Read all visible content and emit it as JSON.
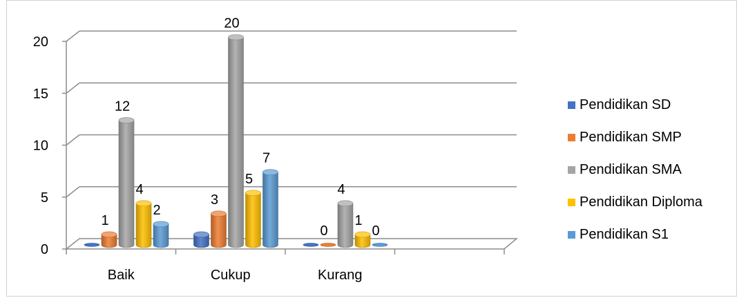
{
  "chart_data": {
    "type": "bar",
    "categories": [
      "Baik",
      "Cukup",
      "Kurang"
    ],
    "series": [
      {
        "name": "Pendidikan SD",
        "values": [
          0,
          1,
          0
        ],
        "color": "#4472C4"
      },
      {
        "name": "Pendidikan SMP",
        "values": [
          1,
          3,
          0
        ],
        "color": "#ED7D31"
      },
      {
        "name": "Pendidikan SMA",
        "values": [
          12,
          20,
          4
        ],
        "color": "#A5A5A5"
      },
      {
        "name": "Pendidikan Diploma",
        "values": [
          4,
          5,
          1
        ],
        "color": "#FFC000"
      },
      {
        "name": "Pendidikan S1",
        "values": [
          2,
          7,
          0
        ],
        "color": "#5B9BD5"
      }
    ],
    "data_labels": [
      {
        "category": "Baik",
        "series": "Pendidikan SMP",
        "text": "1"
      },
      {
        "category": "Baik",
        "series": "Pendidikan SMA",
        "text": "12"
      },
      {
        "category": "Baik",
        "series": "Pendidikan Diploma",
        "text": "4"
      },
      {
        "category": "Baik",
        "series": "Pendidikan S1",
        "text": "2"
      },
      {
        "category": "Cukup",
        "series": "Pendidikan SMP",
        "text": "3"
      },
      {
        "category": "Cukup",
        "series": "Pendidikan SMA",
        "text": "20"
      },
      {
        "category": "Cukup",
        "series": "Pendidikan Diploma",
        "text": "5"
      },
      {
        "category": "Cukup",
        "series": "Pendidikan S1",
        "text": "7"
      },
      {
        "category": "Kurang",
        "series": "Pendidikan SMP",
        "text": "0"
      },
      {
        "category": "Kurang",
        "series": "Pendidikan SMA",
        "text": "4"
      },
      {
        "category": "Kurang",
        "series": "Pendidikan Diploma",
        "text": "1"
      },
      {
        "category": "Kurang",
        "series": "Pendidikan S1",
        "text": "0"
      }
    ],
    "yticks": [
      "0",
      "5",
      "10",
      "15",
      "20"
    ],
    "ylim": [
      0,
      20
    ],
    "grid": true,
    "legend_position": "right",
    "style": "3d-cylinder"
  }
}
